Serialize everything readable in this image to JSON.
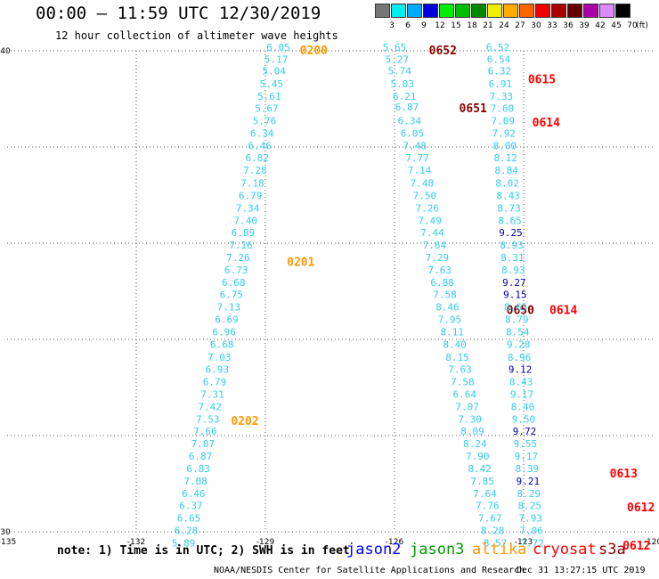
{
  "header": {
    "title": "00:00 — 11:59 UTC 12/30/2019",
    "subtitle": "12 hour collection of altimeter wave heights"
  },
  "colorbar": {
    "unit": "(ft)",
    "colors": [
      "#777777",
      "#00eeee",
      "#00aaff",
      "#0000dd",
      "#00ee00",
      "#00bb00",
      "#008800",
      "#eeee00",
      "#ffaa00",
      "#ff6600",
      "#ee0000",
      "#aa0000",
      "#660000",
      "#aa00aa",
      "#dd88ff",
      "#000000"
    ],
    "labels": [
      "3",
      "6",
      "9",
      "12",
      "15",
      "18",
      "21",
      "24",
      "27",
      "30",
      "33",
      "36",
      "39",
      "42",
      "45",
      "70"
    ]
  },
  "note": "note: 1) Time is in UTC; 2) SWH is in feet",
  "satellites": [
    {
      "name": "jason2",
      "color": "#0000ff"
    },
    {
      "name": "jason3",
      "color": "#009900"
    },
    {
      "name": "altika",
      "color": "#ff9900"
    },
    {
      "name": "cryosat",
      "color": "#ff0000"
    },
    {
      "name": "s3a",
      "color": "#880000"
    }
  ],
  "footer": {
    "left": "NOAA/NESDIS Center for Satellite Applications and Research",
    "right": "Dec 31 13:27:15 UTC 2019"
  },
  "chart_data": {
    "type": "scatter",
    "xlim": [
      -135,
      -120
    ],
    "ylim": [
      30,
      40
    ],
    "x_ticks": [
      -135,
      -132,
      -129,
      -126,
      -123,
      -120
    ],
    "y_ticks": [
      30,
      32,
      34,
      36,
      38,
      40
    ],
    "x_tick_labels": [
      "-135",
      "-132",
      "-129",
      "-126",
      "-123",
      "-120"
    ],
    "y_tick_labels": [
      "30",
      "",
      "",
      "",
      "",
      "40"
    ],
    "grid": true,
    "series": [
      {
        "name": "altika",
        "color": "#33ccee",
        "label_color": "#ff9900",
        "pass_labels": [
          {
            "text": "0200",
            "lon": -128.2,
            "lat": 40.0
          },
          {
            "text": "0201",
            "lon": -128.5,
            "lat": 35.6
          },
          {
            "text": "0202",
            "lon": -129.8,
            "lat": 32.3
          }
        ],
        "points": [
          {
            "lon": -128.7,
            "lat": 40.0,
            "v": "6.05"
          },
          {
            "lon": -128.75,
            "lat": 39.75,
            "v": "5.17"
          },
          {
            "lon": -128.8,
            "lat": 39.51,
            "v": "5.04"
          },
          {
            "lon": -128.86,
            "lat": 39.24,
            "v": "5.45"
          },
          {
            "lon": -128.91,
            "lat": 38.98,
            "v": "5.61"
          },
          {
            "lon": -128.97,
            "lat": 38.73,
            "v": "5.67"
          },
          {
            "lon": -129.02,
            "lat": 38.47,
            "v": "5.76"
          },
          {
            "lon": -129.08,
            "lat": 38.21,
            "v": "6.34"
          },
          {
            "lon": -129.13,
            "lat": 37.95,
            "v": "6.46"
          },
          {
            "lon": -129.19,
            "lat": 37.7,
            "v": "6.82"
          },
          {
            "lon": -129.24,
            "lat": 37.44,
            "v": "7.28"
          },
          {
            "lon": -129.3,
            "lat": 37.18,
            "v": "7.18"
          },
          {
            "lon": -129.35,
            "lat": 36.92,
            "v": "6.79"
          },
          {
            "lon": -129.41,
            "lat": 36.66,
            "v": "7.34"
          },
          {
            "lon": -129.46,
            "lat": 36.4,
            "v": "7.40"
          },
          {
            "lon": -129.52,
            "lat": 36.15,
            "v": "6.89"
          },
          {
            "lon": -129.57,
            "lat": 35.89,
            "v": "7.16"
          },
          {
            "lon": -129.63,
            "lat": 35.63,
            "v": "7.26"
          },
          {
            "lon": -129.68,
            "lat": 35.37,
            "v": "6.73"
          },
          {
            "lon": -129.74,
            "lat": 35.11,
            "v": "6.68"
          },
          {
            "lon": -129.79,
            "lat": 34.86,
            "v": "6.75"
          },
          {
            "lon": -129.85,
            "lat": 34.6,
            "v": "7.13"
          },
          {
            "lon": -129.9,
            "lat": 34.34,
            "v": "6.69"
          },
          {
            "lon": -129.96,
            "lat": 34.08,
            "v": "6.96"
          },
          {
            "lon": -130.01,
            "lat": 33.82,
            "v": "6.68"
          },
          {
            "lon": -130.07,
            "lat": 33.56,
            "v": "7.03"
          },
          {
            "lon": -130.12,
            "lat": 33.31,
            "v": "6.93"
          },
          {
            "lon": -130.18,
            "lat": 33.05,
            "v": "6.79"
          },
          {
            "lon": -130.23,
            "lat": 32.79,
            "v": "7.31"
          },
          {
            "lon": -130.29,
            "lat": 32.53,
            "v": "7.42"
          },
          {
            "lon": -130.34,
            "lat": 32.27,
            "v": "7.53"
          },
          {
            "lon": -130.4,
            "lat": 32.02,
            "v": "7.66"
          },
          {
            "lon": -130.45,
            "lat": 31.76,
            "v": "7.07"
          },
          {
            "lon": -130.51,
            "lat": 31.5,
            "v": "6.87"
          },
          {
            "lon": -130.56,
            "lat": 31.24,
            "v": "6.83"
          },
          {
            "lon": -130.62,
            "lat": 30.98,
            "v": "7.08"
          },
          {
            "lon": -130.67,
            "lat": 30.72,
            "v": "6.46"
          },
          {
            "lon": -130.73,
            "lat": 30.47,
            "v": "6.37"
          },
          {
            "lon": -130.78,
            "lat": 30.21,
            "v": "6.65"
          },
          {
            "lon": -130.84,
            "lat": 29.95,
            "v": "6.28"
          },
          {
            "lon": -130.9,
            "lat": 29.69,
            "v": "5.89"
          }
        ]
      },
      {
        "name": "s3a-west",
        "color": "#33ccee",
        "label_color": "#880000",
        "pass_labels": [
          {
            "text": "0652",
            "lon": -125.2,
            "lat": 40.0
          },
          {
            "text": "0651",
            "lon": -124.5,
            "lat": 38.8
          },
          {
            "text": "0650",
            "lon": -123.4,
            "lat": 34.6
          }
        ],
        "points": [
          {
            "lon": -126.0,
            "lat": 40.0,
            "v": "5.65"
          },
          {
            "lon": -125.94,
            "lat": 39.75,
            "v": "5.27"
          },
          {
            "lon": -125.88,
            "lat": 39.51,
            "v": "5.74"
          },
          {
            "lon": -125.82,
            "lat": 39.24,
            "v": "5.03"
          },
          {
            "lon": -125.77,
            "lat": 38.98,
            "v": "6.21"
          },
          {
            "lon": -125.71,
            "lat": 38.76,
            "v": "6.87"
          },
          {
            "lon": -125.65,
            "lat": 38.47,
            "v": "6.34"
          },
          {
            "lon": -125.59,
            "lat": 38.21,
            "v": "6.05"
          },
          {
            "lon": -125.53,
            "lat": 37.95,
            "v": "7.48"
          },
          {
            "lon": -125.47,
            "lat": 37.7,
            "v": "7.77"
          },
          {
            "lon": -125.42,
            "lat": 37.44,
            "v": "7.14"
          },
          {
            "lon": -125.36,
            "lat": 37.18,
            "v": "7.48"
          },
          {
            "lon": -125.3,
            "lat": 36.92,
            "v": "7.50"
          },
          {
            "lon": -125.24,
            "lat": 36.66,
            "v": "7.26"
          },
          {
            "lon": -125.18,
            "lat": 36.4,
            "v": "7.49"
          },
          {
            "lon": -125.12,
            "lat": 36.15,
            "v": "7.44"
          },
          {
            "lon": -125.07,
            "lat": 35.89,
            "v": "7.64"
          },
          {
            "lon": -125.01,
            "lat": 35.63,
            "v": "7.29"
          },
          {
            "lon": -124.95,
            "lat": 35.37,
            "v": "7.63"
          },
          {
            "lon": -124.89,
            "lat": 35.11,
            "v": "6.88"
          },
          {
            "lon": -124.83,
            "lat": 34.86,
            "v": "7.58"
          },
          {
            "lon": -124.77,
            "lat": 34.6,
            "v": "8.46"
          },
          {
            "lon": -124.72,
            "lat": 34.34,
            "v": "7.95"
          },
          {
            "lon": -124.66,
            "lat": 34.08,
            "v": "8.11"
          },
          {
            "lon": -124.6,
            "lat": 33.82,
            "v": "8.40"
          },
          {
            "lon": -124.54,
            "lat": 33.56,
            "v": "8.15"
          },
          {
            "lon": -124.48,
            "lat": 33.31,
            "v": "7.63"
          },
          {
            "lon": -124.42,
            "lat": 33.05,
            "v": "7.58"
          },
          {
            "lon": -124.37,
            "lat": 32.79,
            "v": "6.64"
          },
          {
            "lon": -124.31,
            "lat": 32.53,
            "v": "7.07"
          },
          {
            "lon": -124.25,
            "lat": 32.27,
            "v": "7.30"
          },
          {
            "lon": -124.19,
            "lat": 32.02,
            "v": "8.09"
          },
          {
            "lon": -124.13,
            "lat": 31.76,
            "v": "8.24"
          },
          {
            "lon": -124.07,
            "lat": 31.5,
            "v": "7.90"
          },
          {
            "lon": -124.02,
            "lat": 31.24,
            "v": "8.42"
          },
          {
            "lon": -123.96,
            "lat": 30.98,
            "v": "7.85"
          },
          {
            "lon": -123.9,
            "lat": 30.72,
            "v": "7.64"
          },
          {
            "lon": -123.84,
            "lat": 30.47,
            "v": "7.76"
          },
          {
            "lon": -123.78,
            "lat": 30.21,
            "v": "7.67"
          },
          {
            "lon": -123.72,
            "lat": 29.95,
            "v": "8.28"
          },
          {
            "lon": -123.66,
            "lat": 29.69,
            "v": "8.57"
          }
        ]
      },
      {
        "name": "cryosat-east",
        "color": "#33ccee",
        "label_color": "#ff0000",
        "pass_labels": [
          {
            "text": "0615",
            "lon": -122.9,
            "lat": 39.4
          },
          {
            "text": "0614",
            "lon": -122.8,
            "lat": 38.5
          },
          {
            "text": "0614",
            "lon": -122.4,
            "lat": 34.6
          },
          {
            "text": "0613",
            "lon": -121.0,
            "lat": 31.2
          },
          {
            "text": "0612",
            "lon": -120.6,
            "lat": 30.5
          },
          {
            "text": "0612",
            "lon": -120.7,
            "lat": 29.7
          }
        ],
        "points": [
          {
            "lon": -123.6,
            "lat": 40.0,
            "v": "6.52"
          },
          {
            "lon": -123.58,
            "lat": 39.75,
            "v": "6.54"
          },
          {
            "lon": -123.56,
            "lat": 39.51,
            "v": "6.32"
          },
          {
            "lon": -123.54,
            "lat": 39.24,
            "v": "6.91"
          },
          {
            "lon": -123.52,
            "lat": 38.98,
            "v": "7.33"
          },
          {
            "lon": -123.5,
            "lat": 38.73,
            "v": "7.60"
          },
          {
            "lon": -123.48,
            "lat": 38.47,
            "v": "7.09"
          },
          {
            "lon": -123.46,
            "lat": 38.21,
            "v": "7.92"
          },
          {
            "lon": -123.44,
            "lat": 37.95,
            "v": "8.00"
          },
          {
            "lon": -123.42,
            "lat": 37.7,
            "v": "8.12"
          },
          {
            "lon": -123.4,
            "lat": 37.44,
            "v": "8.84"
          },
          {
            "lon": -123.38,
            "lat": 37.18,
            "v": "8.02"
          },
          {
            "lon": -123.36,
            "lat": 36.92,
            "v": "8.43"
          },
          {
            "lon": -123.34,
            "lat": 36.66,
            "v": "8.73"
          },
          {
            "lon": -123.32,
            "lat": 36.4,
            "v": "8.65"
          },
          {
            "lon": -123.3,
            "lat": 36.15,
            "v": "9.25",
            "c": "#0000aa"
          },
          {
            "lon": -123.28,
            "lat": 35.89,
            "v": "8.93"
          },
          {
            "lon": -123.26,
            "lat": 35.63,
            "v": "8.31"
          },
          {
            "lon": -123.24,
            "lat": 35.37,
            "v": "8.93"
          },
          {
            "lon": -123.22,
            "lat": 35.11,
            "v": "9.27",
            "c": "#0000aa"
          },
          {
            "lon": -123.2,
            "lat": 34.86,
            "v": "9.15",
            "c": "#0000aa"
          },
          {
            "lon": -123.18,
            "lat": 34.6,
            "v": "8.65"
          },
          {
            "lon": -123.16,
            "lat": 34.34,
            "v": "8.79"
          },
          {
            "lon": -123.14,
            "lat": 34.08,
            "v": "8.54"
          },
          {
            "lon": -123.12,
            "lat": 33.82,
            "v": "9.28"
          },
          {
            "lon": -123.1,
            "lat": 33.56,
            "v": "8.96"
          },
          {
            "lon": -123.08,
            "lat": 33.31,
            "v": "9.12",
            "c": "#0000aa"
          },
          {
            "lon": -123.06,
            "lat": 33.05,
            "v": "8.43"
          },
          {
            "lon": -123.04,
            "lat": 32.79,
            "v": "9.17"
          },
          {
            "lon": -123.02,
            "lat": 32.53,
            "v": "8.40"
          },
          {
            "lon": -123.0,
            "lat": 32.27,
            "v": "9.50"
          },
          {
            "lon": -122.98,
            "lat": 32.02,
            "v": "9.72",
            "c": "#0000aa"
          },
          {
            "lon": -122.96,
            "lat": 31.76,
            "v": "9.55"
          },
          {
            "lon": -122.94,
            "lat": 31.5,
            "v": "9.17"
          },
          {
            "lon": -122.92,
            "lat": 31.24,
            "v": "8.39"
          },
          {
            "lon": -122.9,
            "lat": 30.98,
            "v": "9.21",
            "c": "#0000aa"
          },
          {
            "lon": -122.88,
            "lat": 30.72,
            "v": "8.29"
          },
          {
            "lon": -122.86,
            "lat": 30.47,
            "v": "8.25"
          },
          {
            "lon": -122.84,
            "lat": 30.21,
            "v": "7.93"
          },
          {
            "lon": -122.82,
            "lat": 29.95,
            "v": "7.06"
          },
          {
            "lon": -122.8,
            "lat": 29.69,
            "v": "7.72"
          }
        ]
      }
    ]
  }
}
